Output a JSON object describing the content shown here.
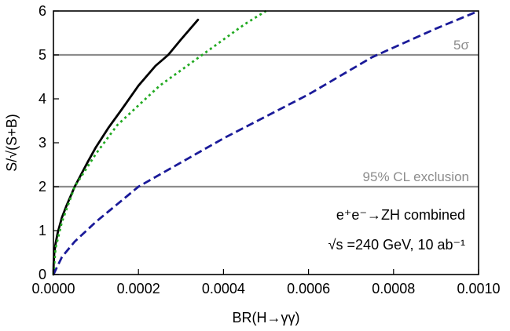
{
  "chart_data": {
    "type": "line",
    "title": "",
    "xlabel": "BR(H→γγ)",
    "ylabel": "S/√(S+B)",
    "xlim": [
      0.0,
      0.001
    ],
    "ylim": [
      0,
      6
    ],
    "x_ticks": [
      "0.0000",
      "0.0002",
      "0.0004",
      "0.0006",
      "0.0008",
      "0.0010"
    ],
    "y_ticks": [
      "0",
      "1",
      "2",
      "3",
      "4",
      "5",
      "6"
    ],
    "grid": false,
    "series": [
      {
        "style": "solid",
        "color": "#000000",
        "x": [
          0,
          5e-07,
          2e-06,
          5e-06,
          1e-05,
          2e-05,
          3e-05,
          5e-05,
          8e-05,
          0.0001,
          0.00013,
          0.00016,
          0.0002,
          0.00024,
          0.00027,
          0.0003,
          0.00034
        ],
        "y": [
          0,
          0.25,
          0.5,
          0.7,
          0.95,
          1.3,
          1.55,
          2.0,
          2.55,
          2.9,
          3.35,
          3.75,
          4.3,
          4.75,
          5.0,
          5.35,
          5.8
        ]
      },
      {
        "style": "dotted",
        "color": "#22aa22",
        "x": [
          0,
          5e-06,
          2e-05,
          5e-05,
          0.0001,
          0.00015,
          0.0002,
          0.00025,
          0.0003,
          0.00035,
          0.0004,
          0.00045,
          0.0005
        ],
        "y": [
          0,
          0.6,
          1.2,
          2.0,
          2.75,
          3.4,
          3.85,
          4.3,
          4.65,
          5.0,
          5.35,
          5.7,
          6.0
        ]
      },
      {
        "style": "dashed",
        "color": "#1a1a99",
        "x": [
          0,
          2e-05,
          5e-05,
          0.0001,
          0.00015,
          0.0002,
          0.0003,
          0.0004,
          0.0005,
          0.0006,
          0.00075,
          0.0009,
          0.001
        ],
        "y": [
          0,
          0.4,
          0.75,
          1.2,
          1.6,
          2.0,
          2.55,
          3.1,
          3.6,
          4.1,
          4.95,
          5.6,
          6.0
        ]
      }
    ],
    "reference_lines": [
      {
        "y": 5,
        "label": "5σ",
        "color": "#8c8c8c"
      },
      {
        "y": 2,
        "label": "95% CL exclusion",
        "color": "#8c8c8c"
      }
    ],
    "annotations": {
      "process": "e⁺e⁻→ZH combined",
      "energy": "√s =240 GeV, 10 ab⁻¹"
    }
  }
}
